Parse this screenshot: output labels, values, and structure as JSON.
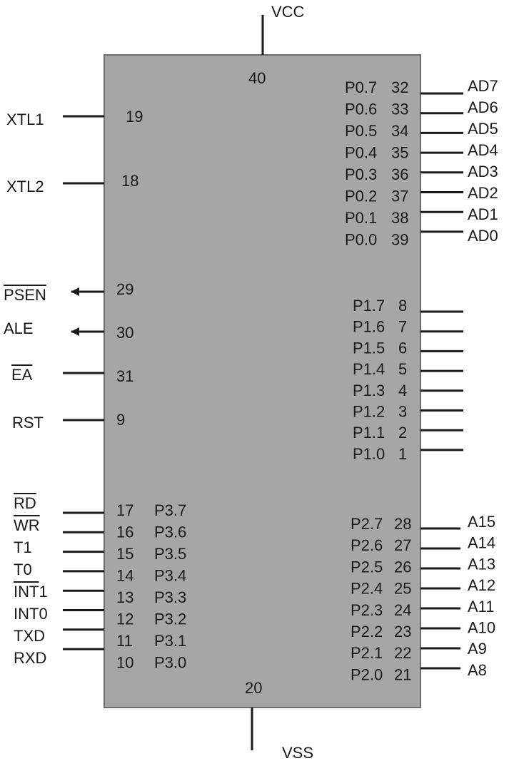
{
  "chip": {
    "body_color": "#a6a6a6",
    "border_color": "#6e6e6e",
    "line_color": "#1a1a1a"
  },
  "power": {
    "vcc": {
      "label": "VCC",
      "pin": "40"
    },
    "vss": {
      "label": "VSS",
      "pin": "20"
    }
  },
  "left_control": [
    {
      "id": "xtl1",
      "label": "XTL1",
      "pin": "19",
      "overbar": false,
      "arrow": false
    },
    {
      "id": "xtl2",
      "label": "XTL2",
      "pin": "18",
      "overbar": false,
      "arrow": false
    },
    {
      "id": "psen",
      "label": "PSEN",
      "pin": "29",
      "overbar": true,
      "arrow": true
    },
    {
      "id": "ale",
      "label": "ALE",
      "pin": "30",
      "overbar": false,
      "arrow": true
    },
    {
      "id": "ea",
      "label": "EA",
      "pin": "31",
      "overbar": true,
      "arrow": false
    },
    {
      "id": "rst",
      "label": "RST",
      "pin": "9",
      "overbar": false,
      "arrow": false
    }
  ],
  "port3": [
    {
      "label": "RD",
      "overbar_text": "RD",
      "pin": "17",
      "port": "P3.7"
    },
    {
      "label": "WR",
      "overbar_text": "WR",
      "pin": "16",
      "port": "P3.6"
    },
    {
      "label": "T1",
      "overbar_text": "",
      "pin": "15",
      "port": "P3.5"
    },
    {
      "label": "T0",
      "overbar_text": "",
      "pin": "14",
      "port": "P3.4"
    },
    {
      "label": "INT1",
      "overbar_text": "INT",
      "pin": "13",
      "port": "P3.3"
    },
    {
      "label": "INT0",
      "overbar_text": "",
      "pin": "12",
      "port": "P3.2"
    },
    {
      "label": "TXD",
      "overbar_text": "",
      "pin": "11",
      "port": "P3.1"
    },
    {
      "label": "RXD",
      "overbar_text": "",
      "pin": "10",
      "port": "P3.0"
    }
  ],
  "port0": [
    {
      "port": "P0.7",
      "pin": "32",
      "label": "AD7"
    },
    {
      "port": "P0.6",
      "pin": "33",
      "label": "AD6"
    },
    {
      "port": "P0.5",
      "pin": "34",
      "label": "AD5"
    },
    {
      "port": "P0.4",
      "pin": "35",
      "label": "AD4"
    },
    {
      "port": "P0.3",
      "pin": "36",
      "label": "AD3"
    },
    {
      "port": "P0.2",
      "pin": "37",
      "label": "AD2"
    },
    {
      "port": "P0.1",
      "pin": "38",
      "label": "AD1"
    },
    {
      "port": "P0.0",
      "pin": "39",
      "label": "AD0"
    }
  ],
  "port1": [
    {
      "port": "P1.7",
      "pin": "8"
    },
    {
      "port": "P1.6",
      "pin": "7"
    },
    {
      "port": "P1.5",
      "pin": "6"
    },
    {
      "port": "P1.4",
      "pin": "5"
    },
    {
      "port": "P1.3",
      "pin": "4"
    },
    {
      "port": "P1.2",
      "pin": "3"
    },
    {
      "port": "P1.1",
      "pin": "2"
    },
    {
      "port": "P1.0",
      "pin": "1"
    }
  ],
  "port2": [
    {
      "port": "P2.7",
      "pin": "28",
      "label": "A15"
    },
    {
      "port": "P2.6",
      "pin": "27",
      "label": "A14"
    },
    {
      "port": "P2.5",
      "pin": "26",
      "label": "A13"
    },
    {
      "port": "P2.4",
      "pin": "25",
      "label": "A12"
    },
    {
      "port": "P2.3",
      "pin": "24",
      "label": "A11"
    },
    {
      "port": "P2.2",
      "pin": "23",
      "label": "A10"
    },
    {
      "port": "P2.1",
      "pin": "22",
      "label": "A9"
    },
    {
      "port": "P2.0",
      "pin": "21",
      "label": "A8"
    }
  ]
}
